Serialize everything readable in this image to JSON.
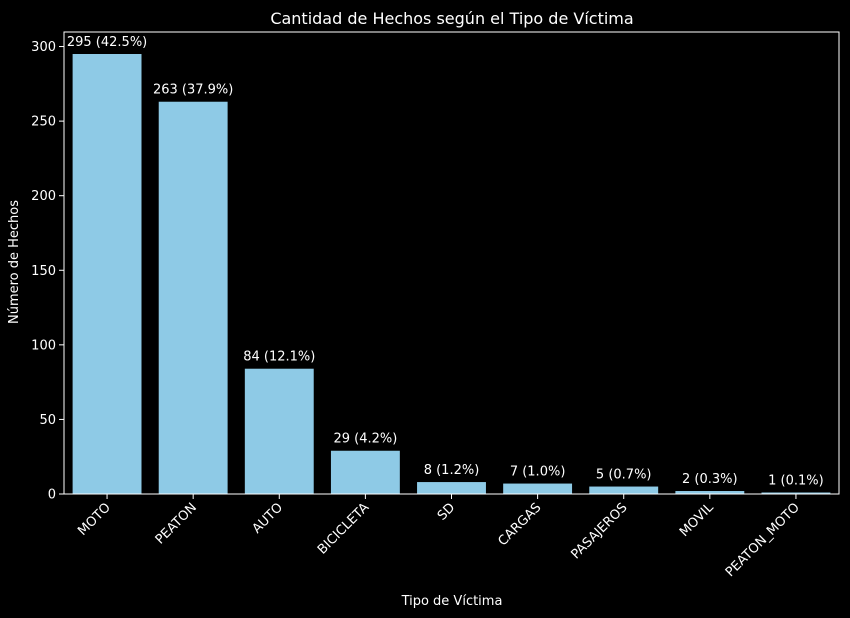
{
  "chart_data": {
    "type": "bar",
    "title": "Cantidad de Hechos según el Tipo de Víctima",
    "xlabel": "Tipo de Víctima",
    "ylabel": "Número de Hechos",
    "categories": [
      "MOTO",
      "PEATON",
      "AUTO",
      "BICICLETA",
      "SD",
      "CARGAS",
      "PASAJEROS",
      "MOVIL",
      "PEATON_MOTO"
    ],
    "values": [
      295,
      263,
      84,
      29,
      8,
      7,
      5,
      2,
      1
    ],
    "data_labels": [
      "295 (42.5%)",
      "263 (37.9%)",
      "84 (12.1%)",
      "29 (4.2%)",
      "8 (1.2%)",
      "7 (1.0%)",
      "5 (0.7%)",
      "2 (0.3%)",
      "1 (0.1%)"
    ],
    "yticks": [
      0,
      50,
      100,
      150,
      200,
      250,
      300
    ],
    "ylim": [
      0,
      309.75
    ],
    "grid": false,
    "legend": "none",
    "colors": {
      "bar": "#8ecae6",
      "background": "#000000",
      "text": "#ffffff",
      "axes": "#ffffff"
    }
  }
}
